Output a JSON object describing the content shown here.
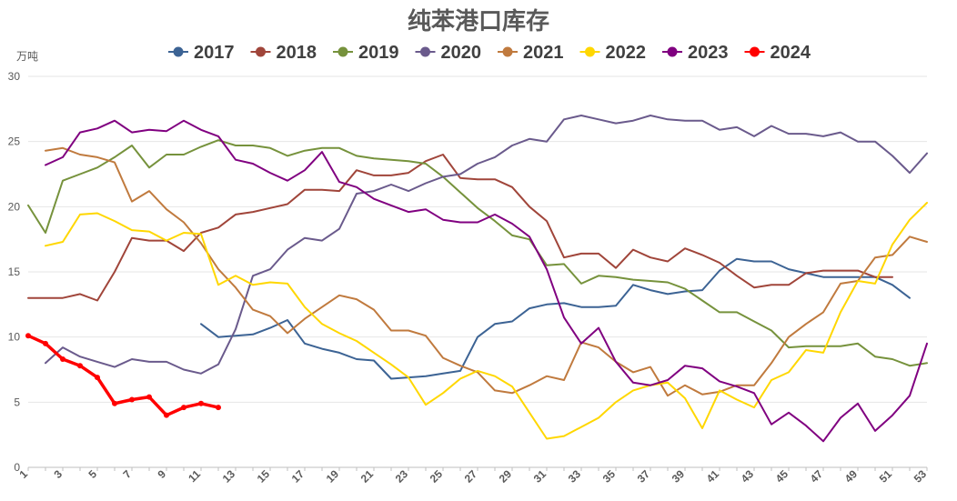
{
  "chart_data": {
    "type": "line",
    "title": "纯苯港口库存",
    "unit_label": "万吨",
    "xlabel": "",
    "ylabel": "",
    "ylim": [
      0,
      30
    ],
    "yticks": [
      0,
      5,
      10,
      15,
      20,
      25,
      30
    ],
    "xlim": [
      1,
      53
    ],
    "xticks": [
      1,
      3,
      5,
      7,
      9,
      11,
      13,
      15,
      17,
      19,
      21,
      23,
      25,
      27,
      29,
      31,
      33,
      35,
      37,
      39,
      41,
      43,
      45,
      47,
      49,
      51,
      53
    ],
    "grid": "horizontal",
    "legend_position": "top",
    "series": [
      {
        "name": "2017",
        "color": "#3c6394",
        "x": [
          11,
          12,
          13,
          14,
          15,
          16,
          17,
          18,
          19,
          20,
          21,
          22,
          23,
          24,
          25,
          26,
          27,
          28,
          29,
          30,
          31,
          32,
          33,
          34,
          35,
          36,
          37,
          38,
          39,
          40,
          41,
          42,
          43,
          44,
          45,
          46,
          47,
          48,
          49,
          50,
          51,
          52
        ],
        "values": [
          11.0,
          10.0,
          10.1,
          10.2,
          10.7,
          11.3,
          9.5,
          9.1,
          8.8,
          8.3,
          8.2,
          6.8,
          6.9,
          7.0,
          7.2,
          7.4,
          10.0,
          11.0,
          11.2,
          12.2,
          12.5,
          12.6,
          12.3,
          12.3,
          12.4,
          14.0,
          13.6,
          13.3,
          13.5,
          13.6,
          15.1,
          16.0,
          15.8,
          15.8,
          15.2,
          14.9,
          14.6,
          14.6,
          14.6,
          14.6,
          14.0,
          13.0
        ]
      },
      {
        "name": "2018",
        "color": "#a0453a",
        "x": [
          1,
          2,
          3,
          4,
          5,
          6,
          7,
          8,
          9,
          10,
          11,
          12,
          13,
          14,
          15,
          16,
          17,
          18,
          19,
          20,
          21,
          22,
          23,
          24,
          25,
          26,
          27,
          28,
          29,
          30,
          31,
          32,
          33,
          34,
          35,
          36,
          37,
          38,
          39,
          40,
          41,
          42,
          43,
          44,
          45,
          46,
          47,
          48,
          49,
          50,
          51
        ],
        "values": [
          13.0,
          13.0,
          13.0,
          13.3,
          12.8,
          15.0,
          17.6,
          17.4,
          17.4,
          16.6,
          18.0,
          18.4,
          19.4,
          19.6,
          19.9,
          20.2,
          21.3,
          21.3,
          21.2,
          22.8,
          22.4,
          22.4,
          22.6,
          23.5,
          24.0,
          22.2,
          22.1,
          22.1,
          21.5,
          20.0,
          18.9,
          16.1,
          16.4,
          16.4,
          15.3,
          16.7,
          16.1,
          15.8,
          16.8,
          16.3,
          15.7,
          14.7,
          13.8,
          14.0,
          14.0,
          14.9,
          15.1,
          15.1,
          15.1,
          14.6,
          14.6
        ]
      },
      {
        "name": "2019",
        "color": "#76923c",
        "x": [
          1,
          2,
          3,
          4,
          5,
          6,
          7,
          8,
          9,
          10,
          11,
          12,
          13,
          14,
          15,
          16,
          17,
          18,
          19,
          20,
          21,
          22,
          23,
          24,
          25,
          26,
          27,
          28,
          29,
          30,
          31,
          32,
          33,
          34,
          35,
          36,
          37,
          38,
          39,
          40,
          41,
          42,
          43,
          44,
          45,
          46,
          47,
          48,
          49,
          50,
          51,
          52,
          53
        ],
        "values": [
          20.1,
          18.0,
          22.0,
          22.5,
          23.0,
          23.8,
          24.7,
          23.0,
          24.0,
          24.0,
          24.6,
          25.1,
          24.7,
          24.7,
          24.5,
          23.9,
          24.3,
          24.5,
          24.5,
          23.9,
          23.7,
          23.6,
          23.5,
          23.3,
          22.3,
          21.1,
          19.9,
          18.9,
          17.8,
          17.5,
          15.5,
          15.6,
          14.1,
          14.7,
          14.6,
          14.4,
          14.3,
          14.2,
          13.7,
          12.8,
          11.9,
          11.9,
          11.2,
          10.5,
          9.2,
          9.3,
          9.3,
          9.3,
          9.5,
          8.5,
          8.3,
          7.8,
          8.0
        ]
      },
      {
        "name": "2020",
        "color": "#6a5a8c",
        "x": [
          2,
          3,
          4,
          5,
          6,
          7,
          8,
          9,
          10,
          11,
          12,
          13,
          14,
          15,
          16,
          17,
          18,
          19,
          20,
          21,
          22,
          23,
          24,
          25,
          26,
          27,
          28,
          29,
          30,
          31,
          32,
          33,
          34,
          35,
          36,
          37,
          38,
          39,
          40,
          41,
          42,
          43,
          44,
          45,
          46,
          47,
          48,
          49,
          50,
          51,
          52,
          53
        ],
        "values": [
          8.0,
          9.2,
          8.5,
          8.1,
          7.7,
          8.3,
          8.1,
          8.1,
          7.5,
          7.2,
          7.9,
          10.6,
          14.7,
          15.2,
          16.7,
          17.6,
          17.4,
          18.3,
          21.0,
          21.2,
          21.7,
          21.2,
          21.8,
          22.3,
          22.5,
          23.3,
          23.8,
          24.7,
          25.2,
          25.0,
          26.7,
          27.0,
          26.7,
          26.4,
          26.6,
          27.0,
          26.7,
          26.6,
          26.6,
          25.9,
          26.1,
          25.4,
          26.2,
          25.6,
          25.6,
          25.4,
          25.7,
          25.0,
          25.0,
          23.9,
          22.6,
          24.1
        ]
      },
      {
        "name": "2021",
        "color": "#c07a3e",
        "x": [
          2,
          3,
          4,
          5,
          6,
          7,
          8,
          9,
          10,
          11,
          12,
          13,
          14,
          15,
          16,
          17,
          18,
          19,
          20,
          21,
          22,
          23,
          24,
          25,
          26,
          27,
          28,
          29,
          30,
          31,
          32,
          33,
          34,
          35,
          36,
          37,
          38,
          39,
          40,
          41,
          42,
          43,
          44,
          45,
          46,
          47,
          48,
          49,
          50,
          51,
          52,
          53
        ],
        "values": [
          24.3,
          24.5,
          24.0,
          23.8,
          23.4,
          20.4,
          21.2,
          19.8,
          18.8,
          17.2,
          15.2,
          13.8,
          12.1,
          11.6,
          10.3,
          11.4,
          12.3,
          13.2,
          12.9,
          12.1,
          10.5,
          10.5,
          10.1,
          8.4,
          7.8,
          7.3,
          5.9,
          5.7,
          6.3,
          7.0,
          6.7,
          9.6,
          9.2,
          8.1,
          7.3,
          7.7,
          5.5,
          6.3,
          5.6,
          5.8,
          6.3,
          6.3,
          8.0,
          10.0,
          11.0,
          11.9,
          14.1,
          14.3,
          16.1,
          16.3,
          17.7,
          17.3
        ]
      },
      {
        "name": "2022",
        "color": "#ffd700",
        "x": [
          2,
          3,
          4,
          5,
          6,
          7,
          8,
          9,
          10,
          11,
          12,
          13,
          14,
          15,
          16,
          17,
          18,
          19,
          20,
          21,
          22,
          23,
          24,
          25,
          26,
          27,
          28,
          29,
          30,
          31,
          32,
          33,
          34,
          35,
          36,
          37,
          38,
          39,
          40,
          41,
          42,
          43,
          44,
          45,
          46,
          47,
          48,
          49,
          50,
          51,
          52,
          53
        ],
        "values": [
          17.0,
          17.3,
          19.4,
          19.5,
          18.9,
          18.2,
          18.1,
          17.4,
          18.0,
          17.9,
          14.0,
          14.7,
          14.0,
          14.2,
          14.1,
          12.3,
          11.0,
          10.3,
          9.7,
          8.8,
          7.9,
          6.9,
          4.8,
          5.7,
          6.8,
          7.4,
          7.0,
          6.2,
          4.2,
          2.2,
          2.4,
          3.1,
          3.8,
          5.0,
          5.9,
          6.3,
          6.5,
          5.3,
          3.0,
          5.9,
          5.2,
          4.6,
          6.7,
          7.3,
          9.0,
          8.8,
          11.9,
          14.3,
          14.1,
          17.1,
          19.0,
          20.3
        ]
      },
      {
        "name": "2023",
        "color": "#800080",
        "x": [
          2,
          3,
          4,
          5,
          6,
          7,
          8,
          9,
          10,
          11,
          12,
          13,
          14,
          15,
          16,
          17,
          18,
          19,
          20,
          21,
          22,
          23,
          24,
          25,
          26,
          27,
          28,
          29,
          30,
          31,
          32,
          33,
          34,
          35,
          36,
          37,
          38,
          39,
          40,
          41,
          42,
          43,
          44,
          45,
          46,
          47,
          48,
          49,
          50,
          51,
          52,
          53
        ],
        "values": [
          23.2,
          23.8,
          25.7,
          26.0,
          26.6,
          25.7,
          25.9,
          25.8,
          26.6,
          25.9,
          25.4,
          23.6,
          23.3,
          22.6,
          22.0,
          22.8,
          24.2,
          21.9,
          21.5,
          20.6,
          20.1,
          19.6,
          19.8,
          19.0,
          18.8,
          18.8,
          19.4,
          18.7,
          17.7,
          15.2,
          11.5,
          9.5,
          10.7,
          8.1,
          6.5,
          6.3,
          6.7,
          7.8,
          7.6,
          6.6,
          6.2,
          5.7,
          3.3,
          4.2,
          3.2,
          2.0,
          3.8,
          4.9,
          2.8,
          4.0,
          5.5,
          9.5
        ]
      },
      {
        "name": "2024",
        "color": "#ff0000",
        "x": [
          1,
          2,
          3,
          4,
          5,
          6,
          7,
          8,
          9,
          10,
          11,
          12
        ],
        "values": [
          10.1,
          9.5,
          8.3,
          7.8,
          6.9,
          4.9,
          5.2,
          5.4,
          4.0,
          4.6,
          4.9,
          4.6
        ]
      }
    ]
  }
}
